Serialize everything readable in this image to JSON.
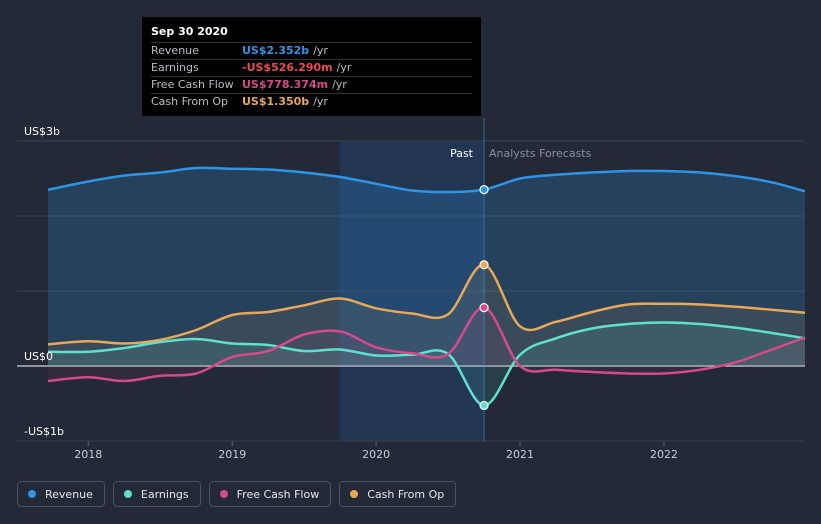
{
  "tooltip": {
    "title": "Sep 30 2020",
    "rows": [
      {
        "label": "Revenue",
        "value": "US$2.352b",
        "unit": "/yr",
        "color": "#2e94e5"
      },
      {
        "label": "Earnings",
        "value": "-US$526.290m",
        "unit": "/yr",
        "color": "#ef4a4a"
      },
      {
        "label": "Free Cash Flow",
        "value": "US$778.374m",
        "unit": "/yr",
        "color": "#d64a8c"
      },
      {
        "label": "Cash From Op",
        "value": "US$1.350b",
        "unit": "/yr",
        "color": "#e8a857"
      }
    ]
  },
  "legend": [
    {
      "label": "Revenue",
      "color": "#2e94e5"
    },
    {
      "label": "Earnings",
      "color": "#5ee0d0"
    },
    {
      "label": "Free Cash Flow",
      "color": "#d64a8c"
    },
    {
      "label": "Cash From Op",
      "color": "#e8a857"
    }
  ],
  "chart_data": {
    "type": "line",
    "y_tick_labels": [
      "US$3b",
      "US$0",
      "-US$1b"
    ],
    "y_ticks": [
      3,
      0,
      -1
    ],
    "ylim": [
      -1,
      3
    ],
    "xlim": [
      2017.72,
      2022.98
    ],
    "x_tick_labels": [
      "2018",
      "2019",
      "2020",
      "2021",
      "2022"
    ],
    "x_ticks": [
      2018,
      2019,
      2020,
      2021,
      2022
    ],
    "region_labels": {
      "past": "Past",
      "forecast": "Analysts Forecasts"
    },
    "highlight_start": 2019.75,
    "divider_x": 2020.75,
    "grid": true,
    "series": [
      {
        "name": "Revenue",
        "color": "#2e94e5",
        "x": [
          2017.72,
          2018.0,
          2018.25,
          2018.5,
          2018.75,
          2019.0,
          2019.25,
          2019.5,
          2019.75,
          2020.0,
          2020.25,
          2020.5,
          2020.75,
          2021.0,
          2021.25,
          2021.5,
          2021.75,
          2022.0,
          2022.25,
          2022.5,
          2022.75,
          2022.98
        ],
        "y": [
          2.35,
          2.46,
          2.54,
          2.58,
          2.64,
          2.63,
          2.62,
          2.58,
          2.52,
          2.43,
          2.34,
          2.32,
          2.352,
          2.5,
          2.55,
          2.58,
          2.6,
          2.6,
          2.58,
          2.53,
          2.45,
          2.33
        ]
      },
      {
        "name": "Earnings",
        "color": "#5ee0d0",
        "x": [
          2017.72,
          2018.0,
          2018.25,
          2018.5,
          2018.75,
          2019.0,
          2019.25,
          2019.5,
          2019.75,
          2020.0,
          2020.25,
          2020.5,
          2020.75,
          2021.0,
          2021.25,
          2021.5,
          2021.75,
          2022.0,
          2022.25,
          2022.5,
          2022.75,
          2022.98
        ],
        "y": [
          0.19,
          0.19,
          0.24,
          0.32,
          0.36,
          0.3,
          0.28,
          0.2,
          0.22,
          0.14,
          0.15,
          0.16,
          -0.526,
          0.15,
          0.37,
          0.5,
          0.56,
          0.58,
          0.56,
          0.51,
          0.44,
          0.37
        ]
      },
      {
        "name": "Free Cash Flow",
        "color": "#d64a8c",
        "x": [
          2017.72,
          2018.0,
          2018.25,
          2018.5,
          2018.75,
          2019.0,
          2019.25,
          2019.5,
          2019.75,
          2020.0,
          2020.25,
          2020.5,
          2020.75,
          2021.0,
          2021.25,
          2021.5,
          2021.75,
          2022.0,
          2022.25,
          2022.5,
          2022.75,
          2022.98
        ],
        "y": [
          -0.2,
          -0.15,
          -0.2,
          -0.13,
          -0.1,
          0.12,
          0.2,
          0.42,
          0.46,
          0.25,
          0.17,
          0.16,
          0.778,
          0.0,
          -0.05,
          -0.08,
          -0.1,
          -0.1,
          -0.05,
          0.05,
          0.22,
          0.38
        ]
      },
      {
        "name": "Cash From Op",
        "color": "#e8a857",
        "x": [
          2017.72,
          2018.0,
          2018.25,
          2018.5,
          2018.75,
          2019.0,
          2019.25,
          2019.5,
          2019.75,
          2020.0,
          2020.25,
          2020.5,
          2020.75,
          2021.0,
          2021.25,
          2021.5,
          2021.75,
          2022.0,
          2022.25,
          2022.5,
          2022.75,
          2022.98
        ],
        "y": [
          0.29,
          0.33,
          0.3,
          0.35,
          0.48,
          0.68,
          0.72,
          0.81,
          0.9,
          0.77,
          0.7,
          0.69,
          1.35,
          0.53,
          0.59,
          0.72,
          0.82,
          0.83,
          0.82,
          0.79,
          0.75,
          0.71
        ]
      }
    ]
  }
}
